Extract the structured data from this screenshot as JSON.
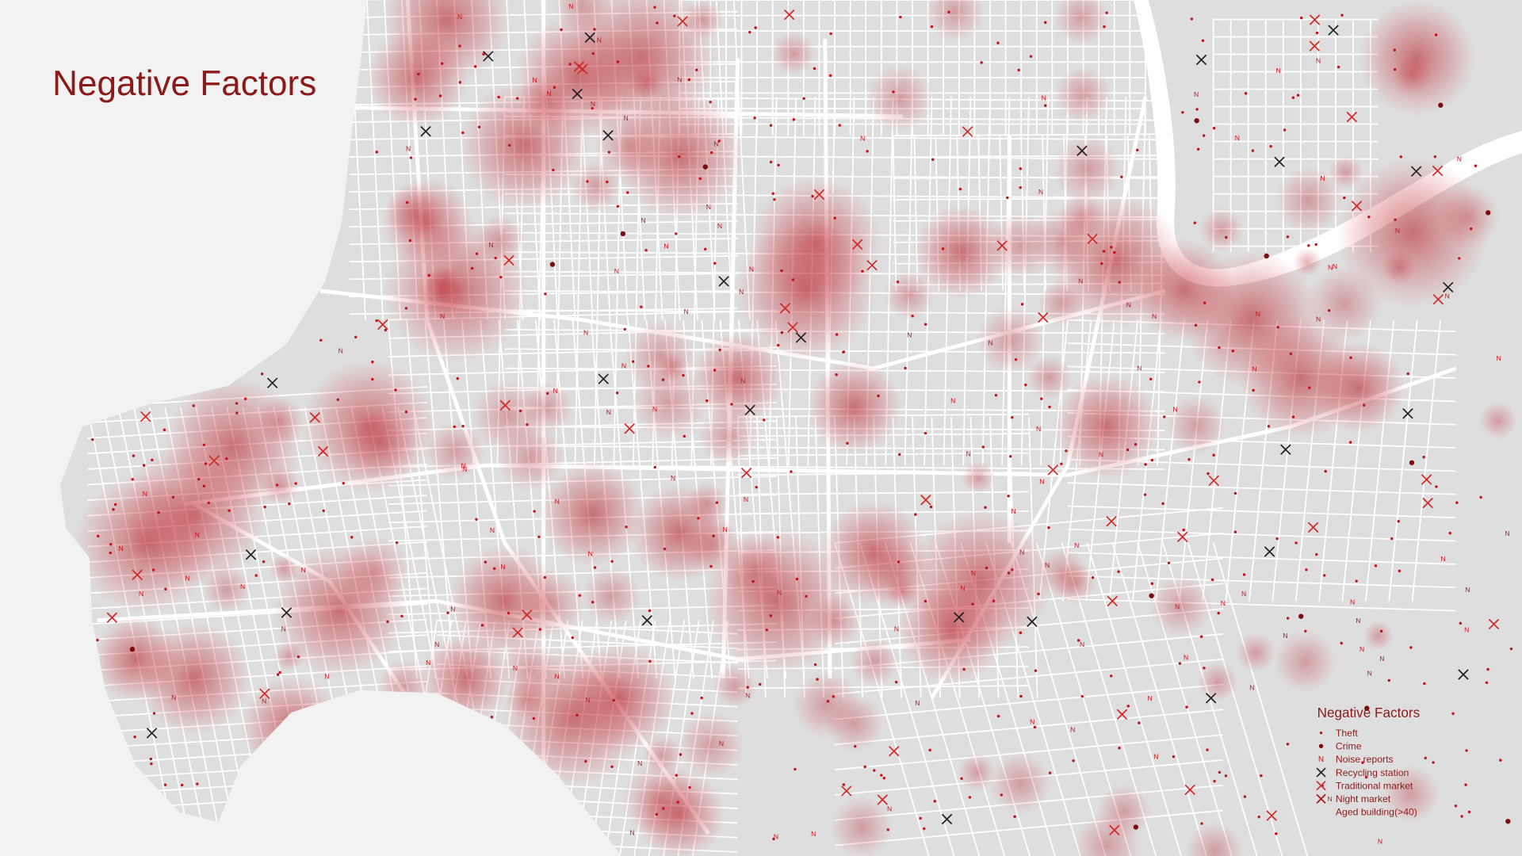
{
  "title": "Negative Factors",
  "legend": {
    "title": "Negative Factors",
    "items": [
      {
        "label": "Theft"
      },
      {
        "label": "Crime"
      },
      {
        "label": "Noise reports",
        "symbol": "N"
      },
      {
        "label": "Recycling station"
      },
      {
        "label": "Traditional market"
      },
      {
        "label": "Night market"
      },
      {
        "label": "Aged building(>40)"
      }
    ]
  }
}
